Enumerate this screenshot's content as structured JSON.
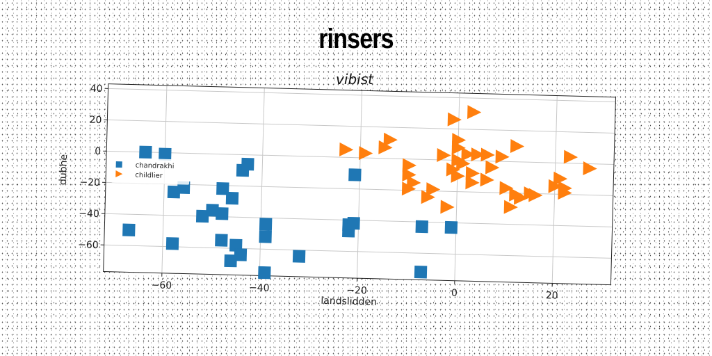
{
  "chart_data": {
    "type": "scatter",
    "title": "rinsers",
    "subtitle": "vibist",
    "xlabel": "landslidden",
    "ylabel": "dubhe",
    "xlim": [
      -72,
      32
    ],
    "ylim": [
      -77,
      43
    ],
    "xticks": [
      -60,
      -40,
      -20,
      0,
      20
    ],
    "yticks": [
      40,
      20,
      0,
      -20,
      -40,
      -60
    ],
    "grid": true,
    "legend_position": "center-left",
    "series": [
      {
        "name": "chandrakhi",
        "marker": "square",
        "color": "#1f77b4",
        "points": [
          [
            -64,
            0
          ],
          [
            -60,
            -1
          ],
          [
            -58,
            -25
          ],
          [
            -56,
            -22
          ],
          [
            -58,
            -58
          ],
          [
            -52,
            -40
          ],
          [
            -50,
            -36
          ],
          [
            -48,
            -22
          ],
          [
            -48,
            -38
          ],
          [
            -48,
            -55
          ],
          [
            -46,
            -28
          ],
          [
            -46,
            -68
          ],
          [
            -45,
            -58
          ],
          [
            -44,
            -64
          ],
          [
            -44,
            -10
          ],
          [
            -43,
            -6
          ],
          [
            -39,
            -44
          ],
          [
            -39,
            -52
          ],
          [
            -39,
            -75
          ],
          [
            -32,
            -64
          ],
          [
            -22,
            -43
          ],
          [
            -22,
            -47
          ],
          [
            -21,
            -42
          ],
          [
            -21,
            -11
          ],
          [
            -7,
            -43
          ],
          [
            -7,
            -72
          ],
          [
            -1,
            -43
          ],
          [
            -67,
            -50
          ]
        ]
      },
      {
        "name": "childlier",
        "marker": "triangle-right",
        "color": "#ff7f0e",
        "points": [
          [
            -23,
            5
          ],
          [
            -19,
            3
          ],
          [
            -15,
            7
          ],
          [
            -14,
            12
          ],
          [
            -10,
            -4
          ],
          [
            -10,
            -10
          ],
          [
            -10,
            -19
          ],
          [
            -9,
            -15
          ],
          [
            -6,
            -24
          ],
          [
            -5,
            -19
          ],
          [
            -2,
            -30
          ],
          [
            -1,
            -6
          ],
          [
            -1,
            26
          ],
          [
            0,
            0
          ],
          [
            0,
            8
          ],
          [
            0,
            13
          ],
          [
            1,
            -2
          ],
          [
            2,
            4
          ],
          [
            3,
            -8
          ],
          [
            3,
            -14
          ],
          [
            3,
            31
          ],
          [
            4,
            4
          ],
          [
            6,
            4
          ],
          [
            6,
            -12
          ],
          [
            7,
            -4
          ],
          [
            9,
            3
          ],
          [
            10,
            -17
          ],
          [
            11,
            -29
          ],
          [
            12,
            10
          ],
          [
            12,
            -21
          ],
          [
            13,
            -23
          ],
          [
            15,
            -20
          ],
          [
            16,
            -21
          ],
          [
            20,
            -15
          ],
          [
            21,
            -10
          ],
          [
            22,
            -16
          ],
          [
            23,
            4
          ],
          [
            27,
            -3
          ],
          [
            22,
            -19
          ],
          [
            0,
            -10
          ],
          [
            -3,
            3
          ]
        ]
      }
    ]
  }
}
